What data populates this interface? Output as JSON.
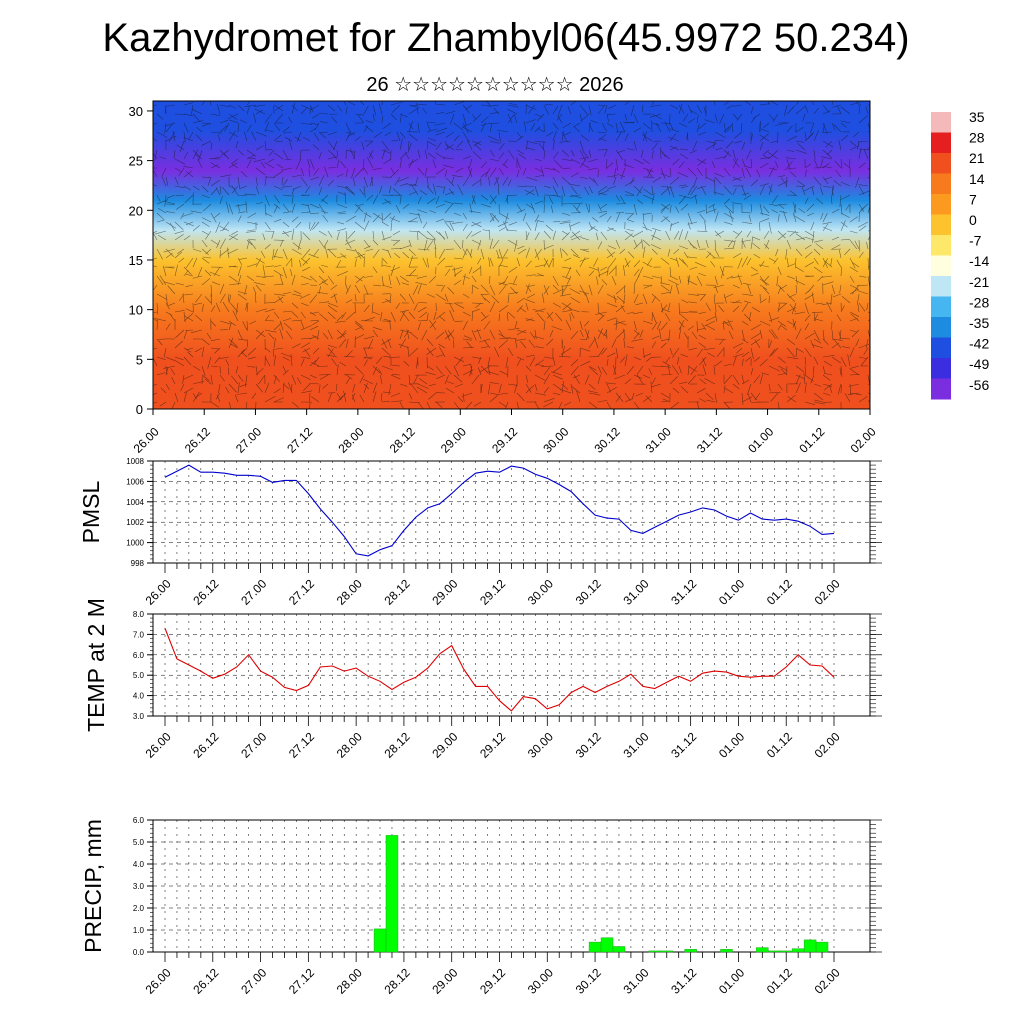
{
  "title": "Kazhydromet for Zhambyl06(45.9972 50.234)",
  "subtitle": "26 ☆☆☆☆☆☆☆☆☆☆ 2026",
  "time_ticks": [
    "26.00",
    "26.12",
    "27.00",
    "27.12",
    "28.00",
    "28.12",
    "29.00",
    "29.12",
    "30.00",
    "30.12",
    "31.00",
    "31.12",
    "01.00",
    "01.12",
    "02.00"
  ],
  "chart_data": [
    {
      "type": "heatmap",
      "description_level": "vertical cross-section of temperature with wind barbs",
      "x_ticks": [
        "26.00",
        "26.12",
        "27.00",
        "27.12",
        "28.00",
        "28.12",
        "29.00",
        "29.12",
        "30.00",
        "30.12",
        "31.00",
        "31.12",
        "01.00",
        "01.12",
        "02.00"
      ],
      "y_ticks": [
        0,
        5,
        10,
        15,
        20,
        25,
        30
      ],
      "ylim": [
        0,
        31
      ],
      "colorbar": {
        "labels": [
          "35",
          "28",
          "21",
          "14",
          "7",
          "0",
          "-7",
          "-14",
          "-21",
          "-28",
          "-35",
          "-42",
          "-49",
          "-56"
        ],
        "colors": [
          "#f4b9b9",
          "#e51f1f",
          "#f0501e",
          "#f77a1d",
          "#fb9a1f",
          "#fcc32e",
          "#fde86a",
          "#ffffe0",
          "#bfe6f5",
          "#45b6ef",
          "#1c8be0",
          "#1f4fe0",
          "#3a2ee0",
          "#7a2ee0"
        ]
      },
      "temperature_levels_by_row": [
        {
          "height": 2,
          "value": 18
        },
        {
          "height": 5,
          "value": 14
        },
        {
          "height": 10,
          "value": 7
        },
        {
          "height": 15,
          "value": -7
        },
        {
          "height": 18,
          "value": -28
        },
        {
          "height": 21,
          "value": -42
        },
        {
          "height": 24,
          "value": -56
        },
        {
          "height": 28,
          "value": -49
        }
      ]
    },
    {
      "type": "line",
      "ylabel": "PMSL",
      "ylim": [
        998,
        1008
      ],
      "y_ticks": [
        "998",
        "1000",
        "1002",
        "1004",
        "1006",
        "1008"
      ],
      "x_ticks": [
        "26.00",
        "26.12",
        "27.00",
        "27.12",
        "28.00",
        "28.12",
        "29.00",
        "29.12",
        "30.00",
        "30.12",
        "31.00",
        "31.12",
        "01.00",
        "01.12",
        "02.00"
      ],
      "color": "#0000cc",
      "values": [
        1006.4,
        1007.0,
        1007.6,
        1006.9,
        1006.9,
        1006.8,
        1006.6,
        1006.6,
        1006.5,
        1005.9,
        1006.1,
        1006.1,
        1004.8,
        1003.3,
        1002.0,
        1000.6,
        998.9,
        998.7,
        999.3,
        999.7,
        1001.2,
        1002.5,
        1003.4,
        1003.8,
        1004.8,
        1005.9,
        1006.8,
        1007.0,
        1006.9,
        1007.5,
        1007.3,
        1006.7,
        1006.3,
        1005.7,
        1005.0,
        1003.8,
        1002.7,
        1002.4,
        1002.3,
        1001.2,
        1000.9,
        1001.5,
        1002.1,
        1002.7,
        1003.0,
        1003.4,
        1003.2,
        1002.6,
        1002.2,
        1002.9,
        1002.3,
        1002.2,
        1002.3,
        1002.1,
        1001.6,
        1000.8,
        1000.9
      ]
    },
    {
      "type": "line",
      "ylabel": "TEMP at 2 M",
      "ylim": [
        3.0,
        8.0
      ],
      "y_ticks": [
        "3.0",
        "4.0",
        "5.0",
        "6.0",
        "7.0",
        "8.0"
      ],
      "x_ticks": [
        "26.00",
        "26.12",
        "27.00",
        "27.12",
        "28.00",
        "28.12",
        "29.00",
        "29.12",
        "30.00",
        "30.12",
        "31.00",
        "31.12",
        "01.00",
        "01.12",
        "02.00"
      ],
      "color": "#dd0000",
      "values": [
        7.3,
        5.8,
        5.5,
        5.2,
        4.85,
        5.05,
        5.4,
        6.0,
        5.2,
        4.9,
        4.4,
        4.25,
        4.5,
        5.4,
        5.45,
        5.2,
        5.35,
        4.95,
        4.7,
        4.3,
        4.65,
        4.9,
        5.35,
        6.05,
        6.45,
        5.3,
        4.45,
        4.45,
        3.75,
        3.25,
        3.95,
        3.85,
        3.35,
        3.55,
        4.15,
        4.45,
        4.15,
        4.45,
        4.7,
        5.05,
        4.45,
        4.35,
        4.65,
        4.95,
        4.7,
        5.1,
        5.2,
        5.15,
        4.95,
        4.9,
        4.95,
        4.95,
        5.4,
        6.0,
        5.5,
        5.45,
        4.9
      ]
    },
    {
      "type": "bar",
      "ylabel": "PRECIP, mm",
      "ylim": [
        0.0,
        6.0
      ],
      "y_ticks": [
        "0.0",
        "1.0",
        "2.0",
        "3.0",
        "4.0",
        "5.0",
        "6.0"
      ],
      "x_ticks": [
        "26.00",
        "26.12",
        "27.00",
        "27.12",
        "28.00",
        "28.12",
        "29.00",
        "29.12",
        "30.00",
        "30.12",
        "31.00",
        "31.12",
        "01.00",
        "01.12",
        "02.00"
      ],
      "color": "#00ff00",
      "values": [
        0,
        0,
        0,
        0,
        0,
        0,
        0,
        0,
        0,
        0,
        0,
        0,
        0,
        0,
        0,
        0,
        0,
        0,
        1.05,
        5.3,
        0,
        0,
        0,
        0,
        0,
        0,
        0,
        0,
        0,
        0,
        0,
        0,
        0,
        0,
        0,
        0,
        0.45,
        0.65,
        0.25,
        0,
        0,
        0.05,
        0.05,
        0,
        0.12,
        0,
        0,
        0.12,
        0,
        0,
        0.2,
        0.05,
        0.05,
        0.15,
        0.55,
        0.45,
        0
      ]
    }
  ]
}
